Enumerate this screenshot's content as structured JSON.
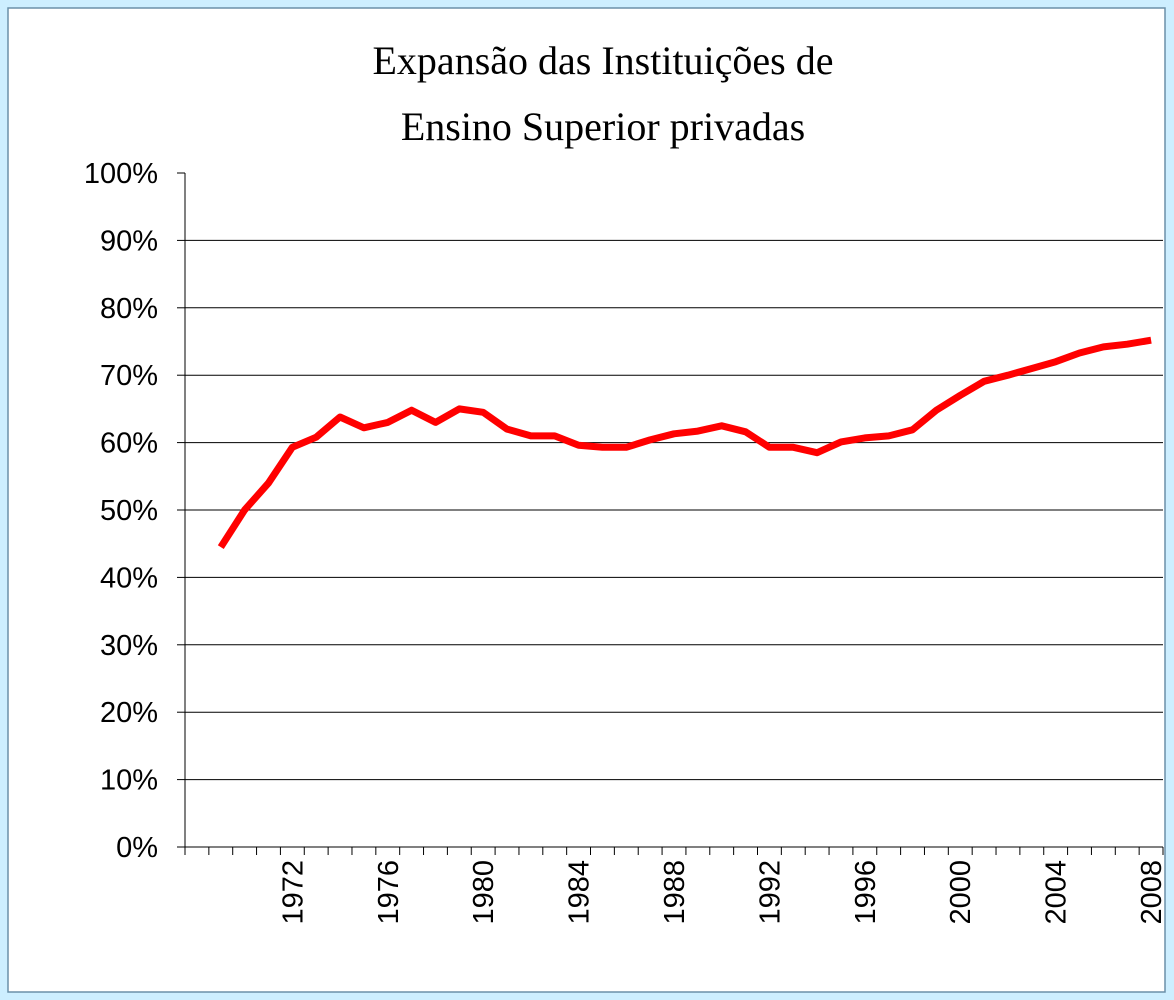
{
  "chart_data": {
    "type": "line",
    "title": [
      "Expansão das Instituições de",
      "Ensino Superior privadas"
    ],
    "categories": [
      null,
      null,
      null,
      null,
      "1972",
      null,
      null,
      null,
      "1976",
      null,
      null,
      null,
      "1980",
      null,
      null,
      null,
      "1984",
      null,
      null,
      null,
      "1988",
      null,
      null,
      null,
      "1992",
      null,
      null,
      null,
      "1996",
      null,
      null,
      null,
      "2000",
      null,
      null,
      null,
      "2004",
      null,
      null,
      null,
      "2008"
    ],
    "series": [
      {
        "color": "#ff0000",
        "values": [
          null,
          44.5,
          50,
          54,
          59.3,
          60.8,
          63.8,
          62.2,
          63,
          64.8,
          63,
          65,
          64.5,
          62,
          61,
          61,
          59.6,
          59.3,
          59.3,
          60.4,
          61.3,
          61.7,
          62.5,
          61.6,
          59.3,
          59.3,
          58.5,
          60.1,
          60.7,
          61,
          61.9,
          64.8,
          67,
          69.1,
          70,
          71,
          72,
          73.3,
          74.2,
          74.6,
          75.2
        ]
      }
    ],
    "ylim": [
      0,
      100
    ],
    "yticks": [
      {
        "value": 0,
        "label": "0%"
      },
      {
        "value": 10,
        "label": "10%"
      },
      {
        "value": 20,
        "label": "20%"
      },
      {
        "value": 30,
        "label": "30%"
      },
      {
        "value": 40,
        "label": "40%"
      },
      {
        "value": 50,
        "label": "50%"
      },
      {
        "value": 60,
        "label": "60%"
      },
      {
        "value": 70,
        "label": "70%"
      },
      {
        "value": 80,
        "label": "80%"
      },
      {
        "value": 90,
        "label": "90%"
      },
      {
        "value": 100,
        "label": "100%"
      }
    ],
    "grid": true
  }
}
